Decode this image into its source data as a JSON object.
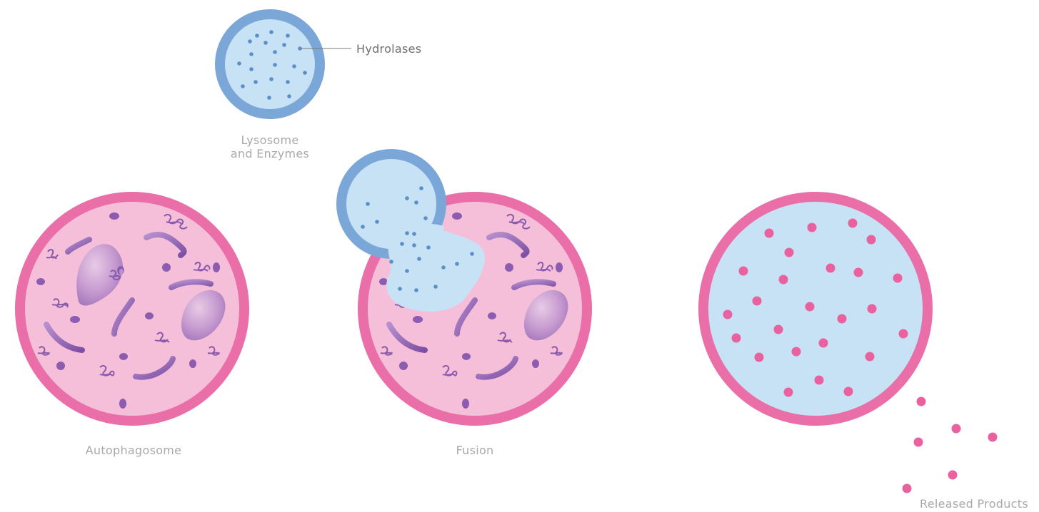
{
  "labels": {
    "hydrolases": "Hydrolases",
    "lysosome_line1": "Lysosome",
    "lysosome_line2": "and Enzymes",
    "autophagosome": "Autophagosome",
    "fusion": "Fusion",
    "released_products": "Released Products"
  },
  "colors": {
    "lysosome_membrane": "#7ba7d8",
    "lysosome_lumen": "#c6e2f4",
    "enzyme_dot": "#5b8fcb",
    "autophagosome_membrane": "#ea6ea8",
    "autophagosome_lumen": "#f5bfd9",
    "cargo": "#9a6bb8",
    "product_dot": "#e9619f"
  }
}
